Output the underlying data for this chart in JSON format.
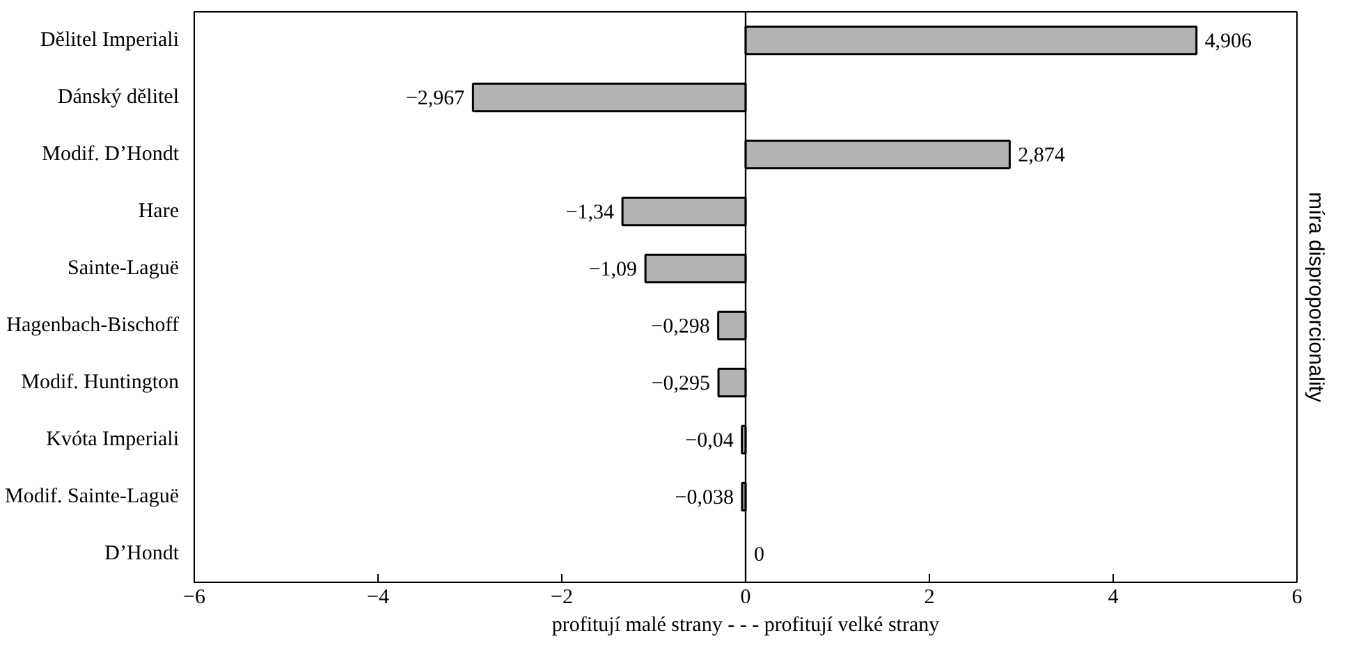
{
  "chart_data": {
    "type": "bar",
    "orientation": "horizontal",
    "categories": [
      "Dělitel Imperiali",
      "Dánský dělitel",
      "Modif. D’Hondt",
      "Hare",
      "Sainte-Laguë",
      "Hagenbach-Bischoff",
      "Modif. Huntington",
      "Kvóta Imperiali",
      "Modif. Sainte-Laguë",
      "D’Hondt"
    ],
    "values": [
      4.906,
      -2.967,
      2.874,
      -1.34,
      -1.09,
      -0.298,
      -0.295,
      -0.04,
      -0.038,
      0
    ],
    "value_labels": [
      "4,906",
      "−2,967",
      "2,874",
      "−1,34",
      "−1,09",
      "−0,298",
      "−0,295",
      "−0,04",
      "−0,038",
      "0"
    ],
    "color": "#b3b3b3",
    "xlim": [
      -6,
      6
    ],
    "xticks": [
      {
        "value": -6,
        "label": "−6"
      },
      {
        "value": -4,
        "label": "−4"
      },
      {
        "value": -2,
        "label": "−2"
      },
      0,
      2,
      4,
      6
    ],
    "xlabel": "profitují malé strany - - - profitují velké strany",
    "ylabel": "míra disproporcionality",
    "ref_lines": [
      {
        "axis": "x",
        "value": 0,
        "color": "#000000"
      }
    ],
    "grid": false
  }
}
